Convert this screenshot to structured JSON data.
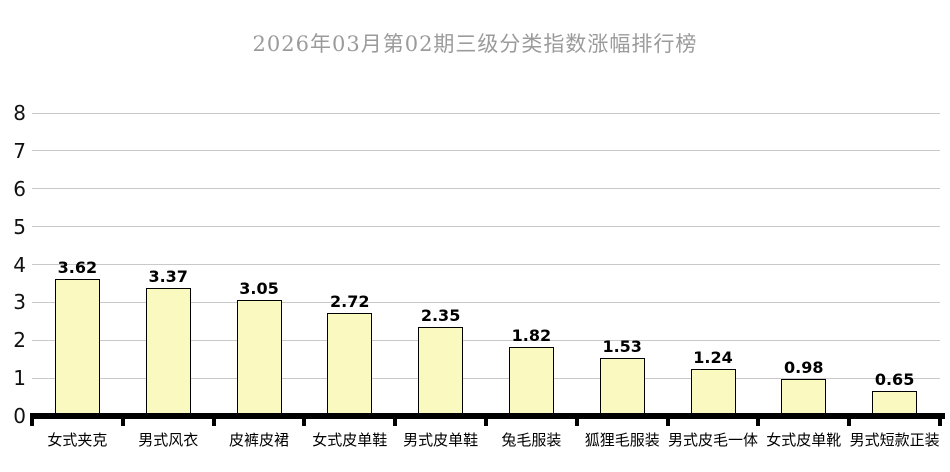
{
  "chart_data": {
    "type": "bar",
    "title": "2026年03月第02期三级分类指数涨幅排行榜",
    "categories": [
      "女式夹克",
      "男式风衣",
      "皮裤皮裙",
      "女式皮单鞋",
      "男式皮单鞋",
      "兔毛服装",
      "狐狸毛服装",
      "男式皮毛一体",
      "女式皮单靴",
      "男式短款正装"
    ],
    "values": [
      3.62,
      3.37,
      3.05,
      2.72,
      2.35,
      1.82,
      1.53,
      1.24,
      0.98,
      0.65
    ],
    "value_labels": [
      "3.62",
      "3.37",
      "3.05",
      "2.72",
      "2.35",
      "1.82",
      "1.53",
      "1.24",
      "0.98",
      "0.65"
    ],
    "xlabel": "",
    "ylabel": "",
    "ylim": [
      0,
      8
    ],
    "yticks": [
      0,
      1,
      2,
      3,
      4,
      5,
      6,
      7,
      8
    ],
    "grid": true,
    "legend": "none",
    "colors": {
      "bar_fill": "#fafac0",
      "bar_border": "#000000",
      "gridline": "#c9c9c9",
      "axis": "#000000",
      "title_text": "#9b9b9b",
      "label_text": "#000000",
      "background": "#ffffff"
    }
  }
}
